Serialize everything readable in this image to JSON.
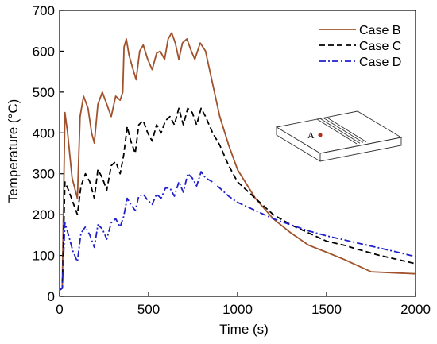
{
  "chart_data": {
    "type": "line",
    "title": "",
    "xlabel": "Time (s)",
    "ylabel": "Temperature (°C)",
    "xlim": [
      0,
      2000
    ],
    "ylim": [
      0,
      700
    ],
    "xticks": [
      0,
      500,
      1000,
      1500,
      2000
    ],
    "yticks": [
      0,
      100,
      200,
      300,
      400,
      500,
      600,
      700
    ],
    "grid": false,
    "legend": "top-right",
    "series": [
      {
        "name": "Case B",
        "color": "#a0522d",
        "dash": "solid",
        "x": [
          0,
          15,
          30,
          45,
          70,
          100,
          115,
          135,
          160,
          180,
          195,
          215,
          240,
          265,
          290,
          315,
          340,
          355,
          362,
          375,
          390,
          410,
          430,
          450,
          470,
          495,
          520,
          545,
          565,
          590,
          610,
          630,
          650,
          670,
          690,
          715,
          740,
          760,
          790,
          820,
          860,
          900,
          950,
          1000,
          1100,
          1200,
          1300,
          1400,
          1500,
          1600,
          1750,
          1900,
          2000
        ],
        "y": [
          15,
          20,
          450,
          400,
          290,
          240,
          440,
          490,
          460,
          400,
          375,
          470,
          500,
          470,
          440,
          490,
          480,
          500,
          610,
          630,
          590,
          560,
          530,
          600,
          615,
          580,
          555,
          595,
          600,
          580,
          630,
          645,
          620,
          580,
          620,
          630,
          600,
          580,
          620,
          600,
          520,
          440,
          370,
          310,
          240,
          190,
          155,
          125,
          108,
          90,
          60,
          57,
          55
        ]
      },
      {
        "name": "Case C",
        "color": "#000000",
        "dash": "dashed",
        "x": [
          0,
          15,
          30,
          50,
          75,
          100,
          120,
          145,
          170,
          195,
          215,
          240,
          265,
          290,
          315,
          340,
          360,
          380,
          400,
          425,
          445,
          470,
          495,
          520,
          545,
          570,
          595,
          620,
          645,
          670,
          695,
          720,
          745,
          770,
          795,
          820,
          860,
          900,
          950,
          1000,
          1100,
          1200,
          1300,
          1400,
          1500,
          1600,
          1700,
          1800,
          1900,
          2000
        ],
        "y": [
          15,
          20,
          280,
          260,
          230,
          200,
          270,
          300,
          280,
          240,
          310,
          290,
          260,
          320,
          330,
          300,
          345,
          415,
          380,
          350,
          420,
          430,
          400,
          380,
          420,
          400,
          430,
          440,
          420,
          460,
          420,
          460,
          450,
          420,
          460,
          440,
          400,
          370,
          320,
          280,
          240,
          200,
          175,
          155,
          135,
          125,
          112,
          100,
          90,
          80
        ]
      },
      {
        "name": "Case D",
        "color": "#2020cc",
        "dash": "dashdot",
        "x": [
          0,
          15,
          30,
          50,
          75,
          100,
          120,
          145,
          170,
          195,
          215,
          240,
          265,
          290,
          315,
          340,
          360,
          380,
          400,
          425,
          445,
          470,
          495,
          520,
          545,
          570,
          595,
          620,
          645,
          670,
          695,
          720,
          745,
          770,
          795,
          820,
          860,
          900,
          950,
          1000,
          1100,
          1200,
          1300,
          1400,
          1500,
          1600,
          1700,
          1800,
          1900,
          2000
        ],
        "y": [
          15,
          20,
          180,
          150,
          110,
          85,
          155,
          170,
          150,
          120,
          175,
          165,
          140,
          180,
          190,
          170,
          195,
          240,
          225,
          210,
          245,
          250,
          235,
          225,
          250,
          240,
          265,
          265,
          245,
          280,
          255,
          300,
          290,
          270,
          305,
          290,
          280,
          265,
          245,
          230,
          210,
          190,
          175,
          160,
          148,
          138,
          128,
          118,
          108,
          97
        ]
      }
    ],
    "inset": {
      "point_label": "A",
      "point_color": "#b03020"
    }
  }
}
